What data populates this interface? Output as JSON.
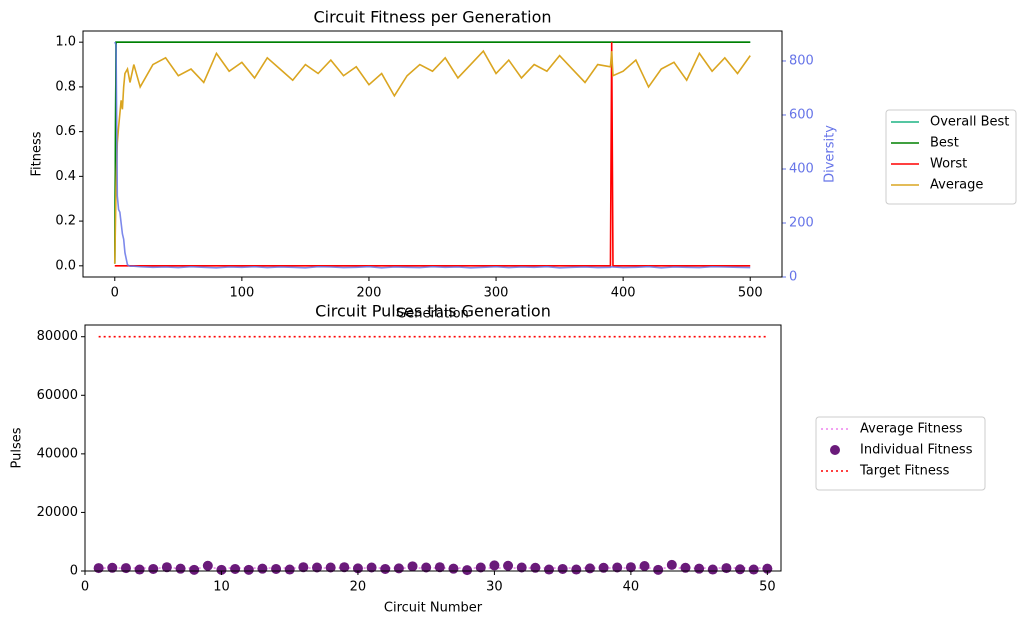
{
  "chart_data": [
    {
      "type": "line",
      "title": "Circuit Fitness per Generation",
      "xlabel": "Generation",
      "ylabel": "Fitness",
      "y2label": "Diversity",
      "y2color": "#6674e8",
      "x": [
        0,
        1,
        2,
        3,
        4,
        5,
        6,
        7,
        8,
        10,
        12,
        15,
        20,
        30,
        40,
        50,
        60,
        70,
        80,
        90,
        100,
        110,
        120,
        130,
        140,
        150,
        160,
        170,
        180,
        190,
        200,
        210,
        220,
        230,
        240,
        250,
        260,
        270,
        280,
        290,
        300,
        310,
        320,
        330,
        340,
        350,
        360,
        370,
        380,
        390,
        391,
        392,
        400,
        410,
        420,
        430,
        440,
        450,
        460,
        470,
        480,
        490,
        500
      ],
      "series": [
        {
          "name": "Overall Best",
          "color": "#1db383",
          "values": [
            0.01,
            1,
            1,
            1,
            1,
            1,
            1,
            1,
            1,
            1,
            1,
            1,
            1,
            1,
            1,
            1,
            1,
            1,
            1,
            1,
            1,
            1,
            1,
            1,
            1,
            1,
            1,
            1,
            1,
            1,
            1,
            1,
            1,
            1,
            1,
            1,
            1,
            1,
            1,
            1,
            1,
            1,
            1,
            1,
            1,
            1,
            1,
            1,
            1,
            1,
            1,
            1,
            1,
            1,
            1,
            1,
            1,
            1,
            1,
            1,
            1,
            1,
            1
          ]
        },
        {
          "name": "Best",
          "color": "#008000",
          "values": [
            0.01,
            1,
            1,
            1,
            1,
            1,
            1,
            1,
            1,
            1,
            1,
            1,
            1,
            1,
            1,
            1,
            1,
            1,
            1,
            1,
            1,
            1,
            1,
            1,
            1,
            1,
            1,
            1,
            1,
            1,
            1,
            1,
            1,
            1,
            1,
            1,
            1,
            1,
            1,
            1,
            1,
            1,
            1,
            1,
            1,
            1,
            1,
            1,
            1,
            1,
            1,
            1,
            1,
            1,
            1,
            1,
            1,
            1,
            1,
            1,
            1,
            1,
            1
          ]
        },
        {
          "name": "Worst",
          "color": "#ff0000",
          "values": [
            0,
            0,
            0,
            0,
            0,
            0,
            0,
            0,
            0,
            0,
            0,
            0,
            0,
            0,
            0,
            0,
            0,
            0,
            0,
            0,
            0,
            0,
            0,
            0,
            0,
            0,
            0,
            0,
            0,
            0,
            0,
            0,
            0,
            0,
            0,
            0,
            0,
            0,
            0,
            0,
            0,
            0,
            0,
            0,
            0,
            0,
            0,
            0,
            0,
            0,
            1,
            0,
            0,
            0,
            0,
            0,
            0,
            0,
            0,
            0,
            0,
            0,
            0
          ]
        },
        {
          "name": "Average",
          "color": "#daa520",
          "values": [
            0.01,
            0.35,
            0.55,
            0.62,
            0.68,
            0.74,
            0.7,
            0.8,
            0.86,
            0.88,
            0.82,
            0.9,
            0.8,
            0.9,
            0.93,
            0.85,
            0.88,
            0.82,
            0.95,
            0.87,
            0.91,
            0.84,
            0.93,
            0.88,
            0.83,
            0.9,
            0.86,
            0.92,
            0.85,
            0.89,
            0.81,
            0.86,
            0.76,
            0.85,
            0.9,
            0.87,
            0.93,
            0.84,
            0.9,
            0.96,
            0.86,
            0.92,
            0.84,
            0.9,
            0.87,
            0.94,
            0.88,
            0.82,
            0.9,
            0.89,
            0.96,
            0.85,
            0.87,
            0.92,
            0.8,
            0.88,
            0.91,
            0.83,
            0.95,
            0.87,
            0.93,
            0.86,
            0.94
          ]
        }
      ],
      "y2_series": {
        "color": "#6674e8",
        "values": [
          870,
          860,
          300,
          250,
          240,
          200,
          160,
          140,
          90,
          45,
          40,
          40,
          38,
          36,
          37,
          35,
          38,
          36,
          34,
          37,
          36,
          38,
          35,
          37,
          36,
          34,
          38,
          37,
          35,
          36,
          38,
          34,
          37,
          36,
          35,
          38,
          36,
          37,
          34,
          36,
          38,
          35,
          37,
          36,
          38,
          34,
          36,
          37,
          35,
          36,
          38,
          37,
          35,
          36,
          38,
          34,
          37,
          36,
          35,
          38,
          37,
          36,
          35
        ]
      },
      "xlim": [
        -25,
        525
      ],
      "ylim": [
        -0.05,
        1.05
      ],
      "y2lim": [
        0,
        911
      ],
      "xticks": [
        0,
        100,
        200,
        300,
        400,
        500
      ],
      "yticks": [
        {
          "value": 0,
          "label": "0.0"
        },
        0.2,
        0.4,
        0.6,
        0.8,
        {
          "value": 1,
          "label": "1.0"
        }
      ],
      "y2ticks": [
        0,
        200,
        400,
        600,
        800
      ]
    },
    {
      "type": "scatter",
      "title": "Circuit Pulses this Generation",
      "xlabel": "Circuit Number",
      "ylabel": "Pulses",
      "x": [
        1,
        2,
        3,
        4,
        5,
        6,
        7,
        8,
        9,
        10,
        11,
        12,
        13,
        14,
        15,
        16,
        17,
        18,
        19,
        20,
        21,
        22,
        23,
        24,
        25,
        26,
        27,
        28,
        29,
        30,
        31,
        32,
        33,
        34,
        35,
        36,
        37,
        38,
        39,
        40,
        41,
        42,
        43,
        44,
        45,
        46,
        47,
        48,
        49,
        50
      ],
      "series": [
        {
          "name": "Average Fitness",
          "kind": "hline",
          "color": "#ee82ee",
          "value": 1000
        },
        {
          "name": "Individual Fitness",
          "kind": "scatter",
          "color": "#6a1a7a",
          "values": [
            1000,
            1100,
            1000,
            500,
            700,
            1300,
            800,
            400,
            1800,
            400,
            700,
            400,
            800,
            700,
            500,
            1300,
            1200,
            1200,
            1300,
            900,
            1200,
            700,
            900,
            1600,
            1200,
            1300,
            800,
            300,
            1200,
            1900,
            1800,
            1200,
            1100,
            500,
            700,
            500,
            900,
            1100,
            1200,
            1300,
            1700,
            400,
            2100,
            1100,
            800,
            500,
            1000,
            600,
            500,
            800
          ]
        },
        {
          "name": "Target Fitness",
          "kind": "hline",
          "color": "#ff0000",
          "value": 80000
        }
      ],
      "xlim": [
        0,
        51
      ],
      "ylim": [
        0,
        84000
      ],
      "xticks": [
        0,
        10,
        20,
        30,
        40,
        50
      ],
      "yticks": [
        0,
        20000,
        40000,
        60000,
        80000
      ]
    }
  ]
}
